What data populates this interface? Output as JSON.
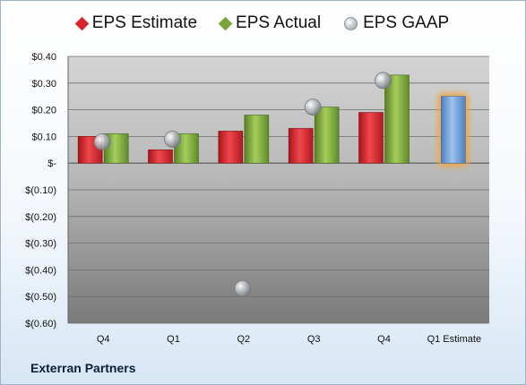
{
  "company": "Exterran Partners",
  "colors": {
    "estimate": "#d9262c",
    "actual": "#7aa33b",
    "future_estimate": "#6fa0d8",
    "highlight": "#f5a43a",
    "gaap": "#a8aeb4"
  },
  "chart_data": {
    "type": "bar",
    "categories": [
      "Q4",
      "Q1",
      "Q2",
      "Q3",
      "Q4",
      "Q1 Estimate"
    ],
    "series": [
      {
        "name": "EPS Estimate",
        "values": [
          0.1,
          0.05,
          0.12,
          0.13,
          0.19,
          0.25
        ]
      },
      {
        "name": "EPS Actual",
        "values": [
          0.11,
          0.11,
          0.18,
          0.21,
          0.33,
          null
        ]
      },
      {
        "name": "EPS GAAP",
        "values": [
          0.08,
          0.09,
          -0.47,
          0.21,
          0.31,
          null
        ]
      }
    ],
    "ylim": [
      -0.6,
      0.4
    ],
    "yticks": [
      0.4,
      0.3,
      0.2,
      0.1,
      0.0,
      -0.1,
      -0.2,
      -0.3,
      -0.4,
      -0.5,
      -0.6
    ],
    "ytick_labels": [
      "$0.40",
      "$0.30",
      "$0.20",
      "$0.10",
      "$-",
      "$(0.10)",
      "$(0.20)",
      "$(0.30)",
      "$(0.40)",
      "$(0.50)",
      "$(0.60)"
    ],
    "legend": "top",
    "grid": true
  }
}
